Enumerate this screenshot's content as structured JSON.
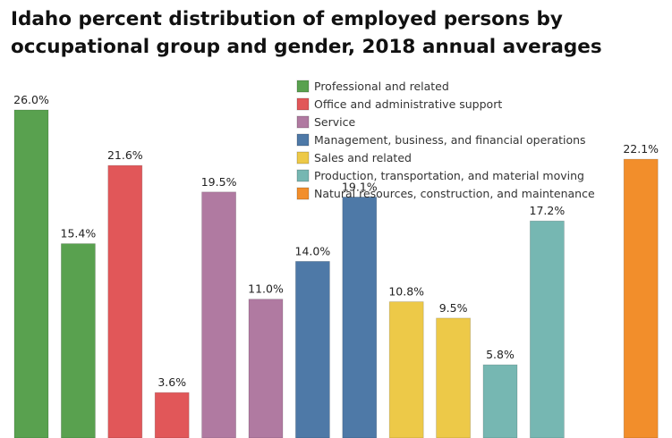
{
  "chart_data": {
    "type": "bar",
    "title": "Idaho percent distribution of employed persons by occupational group and gender, 2018 annual averages",
    "xlabel": "",
    "ylabel": "",
    "ylim": [
      0,
      26
    ],
    "bars": [
      {
        "group": "Professional and related",
        "value": 26.0,
        "label": "26.0%",
        "color": "#59a14f"
      },
      {
        "group": "Professional and related",
        "value": 15.4,
        "label": "15.4%",
        "color": "#59a14f"
      },
      {
        "group": "Office and administrative support",
        "value": 21.6,
        "label": "21.6%",
        "color": "#e15759"
      },
      {
        "group": "Office and administrative support",
        "value": 3.6,
        "label": "3.6%",
        "color": "#e15759"
      },
      {
        "group": "Service",
        "value": 19.5,
        "label": "19.5%",
        "color": "#b07aa1"
      },
      {
        "group": "Service",
        "value": 11.0,
        "label": "11.0%",
        "color": "#b07aa1"
      },
      {
        "group": "Management, business, and financial operations",
        "value": 14.0,
        "label": "14.0%",
        "color": "#4e79a7"
      },
      {
        "group": "Management, business, and financial operations",
        "value": 19.1,
        "label": "19.1%",
        "color": "#4e79a7"
      },
      {
        "group": "Sales and related",
        "value": 10.8,
        "label": "10.8%",
        "color": "#edc948"
      },
      {
        "group": "Sales and related",
        "value": 9.5,
        "label": "9.5%",
        "color": "#edc948"
      },
      {
        "group": "Production, transportation, and material moving",
        "value": 5.8,
        "label": "5.8%",
        "color": "#76b7b2"
      },
      {
        "group": "Production, transportation, and material moving",
        "value": 17.2,
        "label": "17.2%",
        "color": "#76b7b2"
      },
      {
        "group": "Natural resources, construction, and maintenance",
        "value": 0.0,
        "label": "",
        "color": "#f28e2b"
      },
      {
        "group": "Natural resources, construction, and maintenance",
        "value": 22.1,
        "label": "22.1%",
        "color": "#f28e2b"
      }
    ],
    "legend": [
      {
        "label": "Professional and related",
        "color": "#59a14f"
      },
      {
        "label": "Office and administrative support",
        "color": "#e15759"
      },
      {
        "label": "Service",
        "color": "#b07aa1"
      },
      {
        "label": "Management, business, and financial operations",
        "color": "#4e79a7"
      },
      {
        "label": "Sales and related",
        "color": "#edc948"
      },
      {
        "label": "Production, transportation, and material moving",
        "color": "#76b7b2"
      },
      {
        "label": "Natural resources, construction, and maintenance",
        "color": "#f28e2b"
      }
    ],
    "legend_position": "top-right"
  }
}
